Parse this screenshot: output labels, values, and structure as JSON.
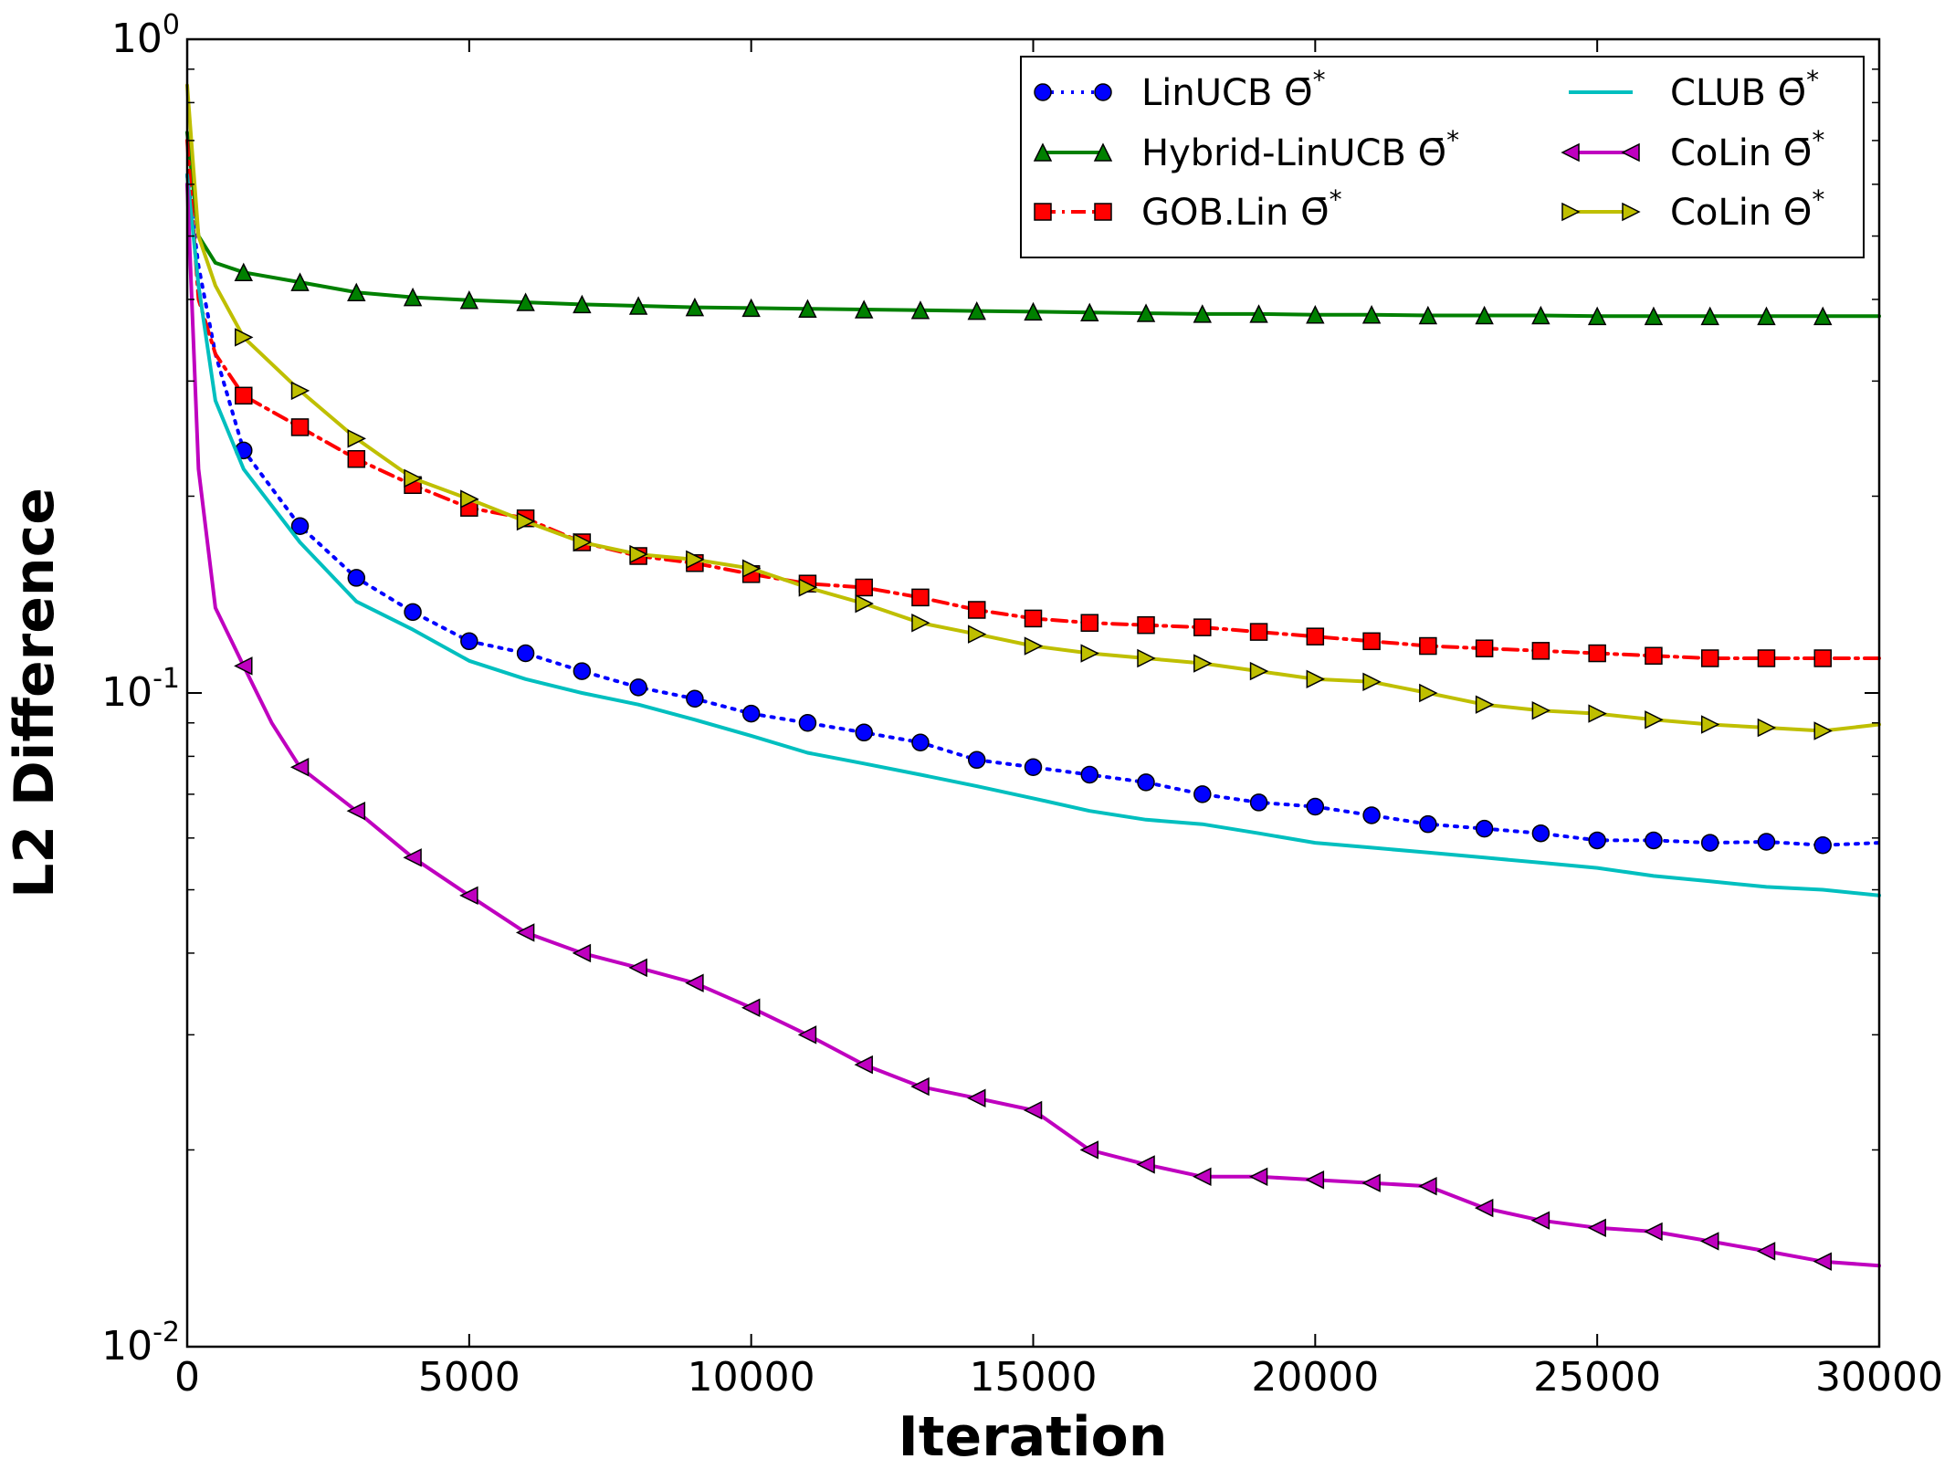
{
  "chart_data": {
    "type": "line",
    "title": "",
    "xlabel": "Iteration",
    "ylabel": "L2 Difference",
    "xlim": [
      0,
      30000
    ],
    "ylim": [
      0.01,
      1
    ],
    "yscale": "log",
    "grid": false,
    "legend_position": "top-right",
    "x_ticks": [
      0,
      5000,
      10000,
      15000,
      20000,
      25000,
      30000
    ],
    "x_tick_labels": [
      "0",
      "5000",
      "10000",
      "15000",
      "20000",
      "25000",
      "30000"
    ],
    "y_ticks": [
      {
        "value": 1,
        "base": "10",
        "exp": "0"
      },
      {
        "value": 0.1,
        "base": "10",
        "exp": "-1"
      },
      {
        "value": 0.01,
        "base": "10",
        "exp": "-2"
      }
    ],
    "series": [
      {
        "name": "LinUCB Θ̄*",
        "color": "#0000ff",
        "dash": "dotted",
        "marker": "circle",
        "x": [
          0,
          200,
          500,
          1000,
          2000,
          3000,
          4000,
          5000,
          6000,
          7000,
          8000,
          9000,
          10000,
          11000,
          12000,
          13000,
          14000,
          15000,
          16000,
          17000,
          18000,
          19000,
          20000,
          21000,
          22000,
          23000,
          24000,
          25000,
          26000,
          27000,
          28000,
          29000,
          30000
        ],
        "y": [
          0.62,
          0.45,
          0.33,
          0.235,
          0.18,
          0.15,
          0.133,
          0.12,
          0.115,
          0.108,
          0.102,
          0.098,
          0.093,
          0.09,
          0.087,
          0.084,
          0.079,
          0.077,
          0.075,
          0.073,
          0.07,
          0.068,
          0.067,
          0.065,
          0.063,
          0.062,
          0.061,
          0.0595,
          0.0595,
          0.059,
          0.0592,
          0.0585,
          0.059
        ]
      },
      {
        "name": "Hybrid-LinUCB Θ̄*",
        "color": "#008000",
        "dash": "solid",
        "marker": "triangle-up",
        "x": [
          0,
          200,
          500,
          1000,
          2000,
          3000,
          4000,
          5000,
          6000,
          7000,
          8000,
          9000,
          10000,
          11000,
          12000,
          13000,
          14000,
          15000,
          16000,
          17000,
          18000,
          19000,
          20000,
          21000,
          22000,
          23000,
          24000,
          25000,
          26000,
          27000,
          28000,
          29000,
          30000
        ],
        "y": [
          0.72,
          0.5,
          0.455,
          0.44,
          0.425,
          0.41,
          0.403,
          0.399,
          0.396,
          0.393,
          0.391,
          0.389,
          0.388,
          0.387,
          0.386,
          0.385,
          0.384,
          0.383,
          0.382,
          0.381,
          0.38,
          0.38,
          0.379,
          0.379,
          0.378,
          0.378,
          0.378,
          0.377,
          0.377,
          0.377,
          0.377,
          0.377,
          0.377
        ]
      },
      {
        "name": "GOB.Lin Θ̄*",
        "color": "#ff0000",
        "dash": "dashdot",
        "marker": "square",
        "x": [
          0,
          200,
          500,
          1000,
          2000,
          3000,
          4000,
          5000,
          6000,
          7000,
          8000,
          9000,
          10000,
          11000,
          12000,
          13000,
          14000,
          15000,
          16000,
          17000,
          18000,
          19000,
          20000,
          21000,
          22000,
          23000,
          24000,
          25000,
          26000,
          27000,
          28000,
          29000,
          30000
        ],
        "y": [
          0.7,
          0.4,
          0.33,
          0.285,
          0.255,
          0.228,
          0.208,
          0.192,
          0.185,
          0.17,
          0.162,
          0.158,
          0.152,
          0.147,
          0.145,
          0.14,
          0.134,
          0.13,
          0.128,
          0.127,
          0.126,
          0.124,
          0.122,
          0.12,
          0.118,
          0.117,
          0.116,
          0.115,
          0.114,
          0.113,
          0.113,
          0.113,
          0.113
        ]
      },
      {
        "name": "CLUB Θ̄*",
        "color": "#00bfbf",
        "dash": "solid",
        "marker": "none",
        "x": [
          0,
          200,
          500,
          1000,
          2000,
          3000,
          4000,
          5000,
          6000,
          7000,
          8000,
          9000,
          10000,
          11000,
          12000,
          13000,
          14000,
          15000,
          16000,
          17000,
          18000,
          19000,
          20000,
          21000,
          22000,
          23000,
          24000,
          25000,
          26000,
          27000,
          28000,
          29000,
          30000
        ],
        "y": [
          0.62,
          0.42,
          0.28,
          0.22,
          0.17,
          0.138,
          0.125,
          0.112,
          0.105,
          0.1,
          0.096,
          0.091,
          0.086,
          0.081,
          0.078,
          0.075,
          0.072,
          0.069,
          0.066,
          0.064,
          0.063,
          0.061,
          0.059,
          0.058,
          0.057,
          0.056,
          0.055,
          0.054,
          0.0525,
          0.0515,
          0.0505,
          0.05,
          0.049
        ]
      },
      {
        "name": "CoLin Θ̄*",
        "color": "#bf00bf",
        "dash": "solid",
        "marker": "triangle-left",
        "x": [
          0,
          200,
          500,
          1000,
          1500,
          2000,
          3000,
          4000,
          5000,
          6000,
          7000,
          8000,
          9000,
          10000,
          11000,
          12000,
          13000,
          14000,
          15000,
          16000,
          17000,
          18000,
          19000,
          20000,
          21000,
          22000,
          23000,
          24000,
          25000,
          26000,
          27000,
          28000,
          29000,
          30000
        ],
        "y": [
          0.6,
          0.22,
          0.135,
          0.11,
          0.09,
          0.077,
          0.066,
          0.056,
          0.049,
          0.043,
          0.04,
          0.038,
          0.036,
          0.033,
          0.03,
          0.027,
          0.025,
          0.024,
          0.023,
          0.02,
          0.019,
          0.0182,
          0.0182,
          0.018,
          0.0178,
          0.0176,
          0.0163,
          0.0156,
          0.0152,
          0.015,
          0.0145,
          0.014,
          0.0135,
          0.0133
        ]
      },
      {
        "name": "CoLin Θ*",
        "color": "#bfbf00",
        "dash": "solid",
        "marker": "triangle-right",
        "x": [
          0,
          200,
          500,
          1000,
          2000,
          3000,
          4000,
          5000,
          6000,
          7000,
          8000,
          9000,
          10000,
          11000,
          12000,
          13000,
          14000,
          15000,
          16000,
          17000,
          18000,
          19000,
          20000,
          21000,
          22000,
          23000,
          24000,
          25000,
          26000,
          27000,
          28000,
          29000,
          30000
        ],
        "y": [
          0.85,
          0.5,
          0.42,
          0.35,
          0.29,
          0.245,
          0.213,
          0.198,
          0.183,
          0.17,
          0.163,
          0.16,
          0.155,
          0.145,
          0.137,
          0.128,
          0.123,
          0.118,
          0.115,
          0.113,
          0.111,
          0.108,
          0.105,
          0.104,
          0.1,
          0.096,
          0.094,
          0.093,
          0.091,
          0.0895,
          0.0885,
          0.0875,
          0.0895
        ]
      }
    ],
    "legend": [
      {
        "label": "LinUCB",
        "symbol": "Θ̄",
        "sup": "*"
      },
      {
        "label": "Hybrid-LinUCB",
        "symbol": "Θ̄",
        "sup": "*"
      },
      {
        "label": "GOB.Lin",
        "symbol": "Θ̄",
        "sup": "*"
      },
      {
        "label": "CLUB",
        "symbol": "Θ̄",
        "sup": "*"
      },
      {
        "label": "CoLin",
        "symbol": "Θ̄",
        "sup": "*"
      },
      {
        "label": "CoLin",
        "symbol": "Θ",
        "sup": "*"
      }
    ]
  }
}
